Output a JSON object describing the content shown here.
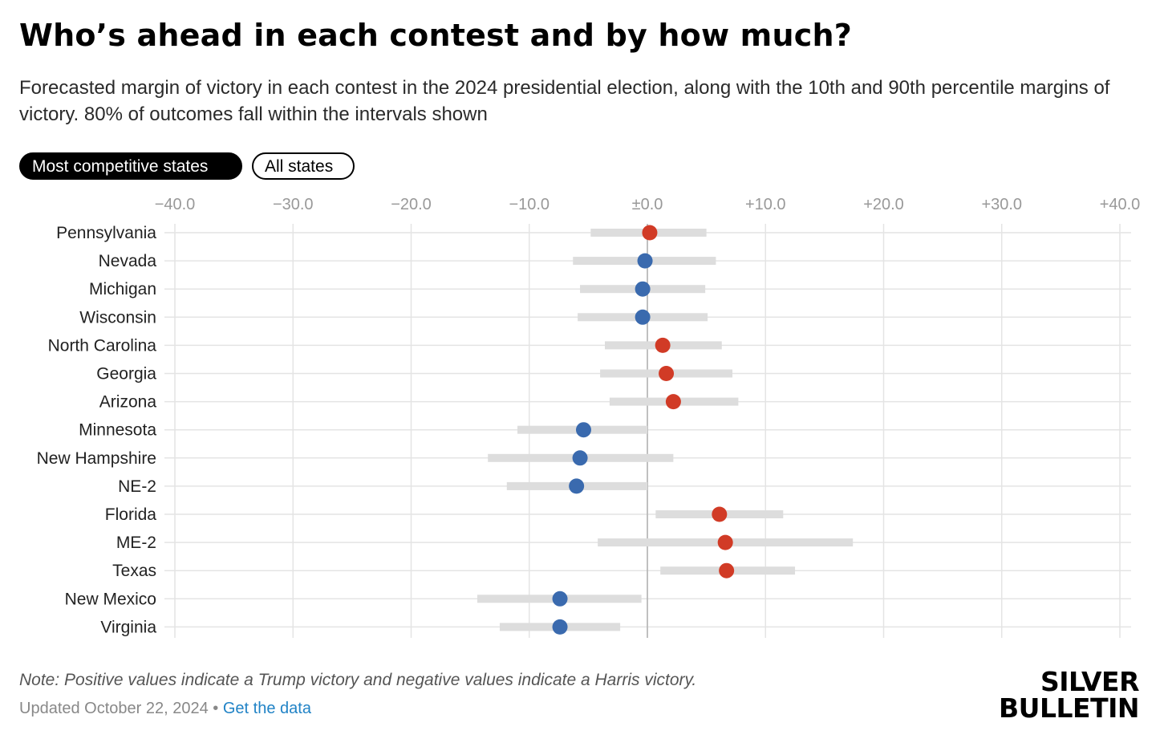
{
  "header": {
    "title": "Who’s ahead in each contest and by how much?",
    "subtitle": "Forecasted margin of victory in each contest in the 2024 presidential election, along with the 10th and 90th percentile margins of victory. 80% of outcomes fall within the intervals shown"
  },
  "toggles": {
    "competitive": "Most competitive states",
    "all": "All states"
  },
  "colors": {
    "trump": "#d13b26",
    "harris": "#3a6aae",
    "interval": "#dddddd",
    "grid": "#e4e4e4",
    "zero_line": "#b0b0b0"
  },
  "chart_data": {
    "type": "dot-interval",
    "xlim": [
      -40,
      40
    ],
    "ticks": [
      -40,
      -30,
      -20,
      -10,
      0,
      10,
      20,
      30,
      40
    ],
    "tick_labels": [
      "−40.0",
      "−30.0",
      "−20.0",
      "−10.0",
      "±0.0",
      "+10.0",
      "+20.0",
      "+30.0",
      "+40.0"
    ],
    "rows": [
      {
        "state": "Pennsylvania",
        "margin": 0.2,
        "p10": -4.8,
        "p90": 5.0,
        "leader": "trump"
      },
      {
        "state": "Nevada",
        "margin": -0.2,
        "p10": -6.3,
        "p90": 5.8,
        "leader": "harris"
      },
      {
        "state": "Michigan",
        "margin": -0.4,
        "p10": -5.7,
        "p90": 4.9,
        "leader": "harris"
      },
      {
        "state": "Wisconsin",
        "margin": -0.4,
        "p10": -5.9,
        "p90": 5.1,
        "leader": "harris"
      },
      {
        "state": "North Carolina",
        "margin": 1.3,
        "p10": -3.6,
        "p90": 6.3,
        "leader": "trump"
      },
      {
        "state": "Georgia",
        "margin": 1.6,
        "p10": -4.0,
        "p90": 7.2,
        "leader": "trump"
      },
      {
        "state": "Arizona",
        "margin": 2.2,
        "p10": -3.2,
        "p90": 7.7,
        "leader": "trump"
      },
      {
        "state": "Minnesota",
        "margin": -5.4,
        "p10": -11.0,
        "p90": 0.0,
        "leader": "harris"
      },
      {
        "state": "New Hampshire",
        "margin": -5.7,
        "p10": -13.5,
        "p90": 2.2,
        "leader": "harris"
      },
      {
        "state": "NE-2",
        "margin": -6.0,
        "p10": -11.9,
        "p90": 0.0,
        "leader": "harris"
      },
      {
        "state": "Florida",
        "margin": 6.1,
        "p10": 0.7,
        "p90": 11.5,
        "leader": "trump"
      },
      {
        "state": "ME-2",
        "margin": 6.6,
        "p10": -4.2,
        "p90": 17.4,
        "leader": "trump"
      },
      {
        "state": "Texas",
        "margin": 6.7,
        "p10": 1.1,
        "p90": 12.5,
        "leader": "trump"
      },
      {
        "state": "New Mexico",
        "margin": -7.4,
        "p10": -14.4,
        "p90": -0.5,
        "leader": "harris"
      },
      {
        "state": "Virginia",
        "margin": -7.4,
        "p10": -12.5,
        "p90": -2.3,
        "leader": "harris"
      }
    ]
  },
  "footer": {
    "note": "Note: Positive values indicate a Trump victory and negative values indicate a Harris victory.",
    "updated": "Updated October 22, 2024",
    "separator": " • ",
    "link": "Get the data"
  },
  "logo": {
    "line1": "SILVER",
    "line2": "BULLETIN"
  }
}
